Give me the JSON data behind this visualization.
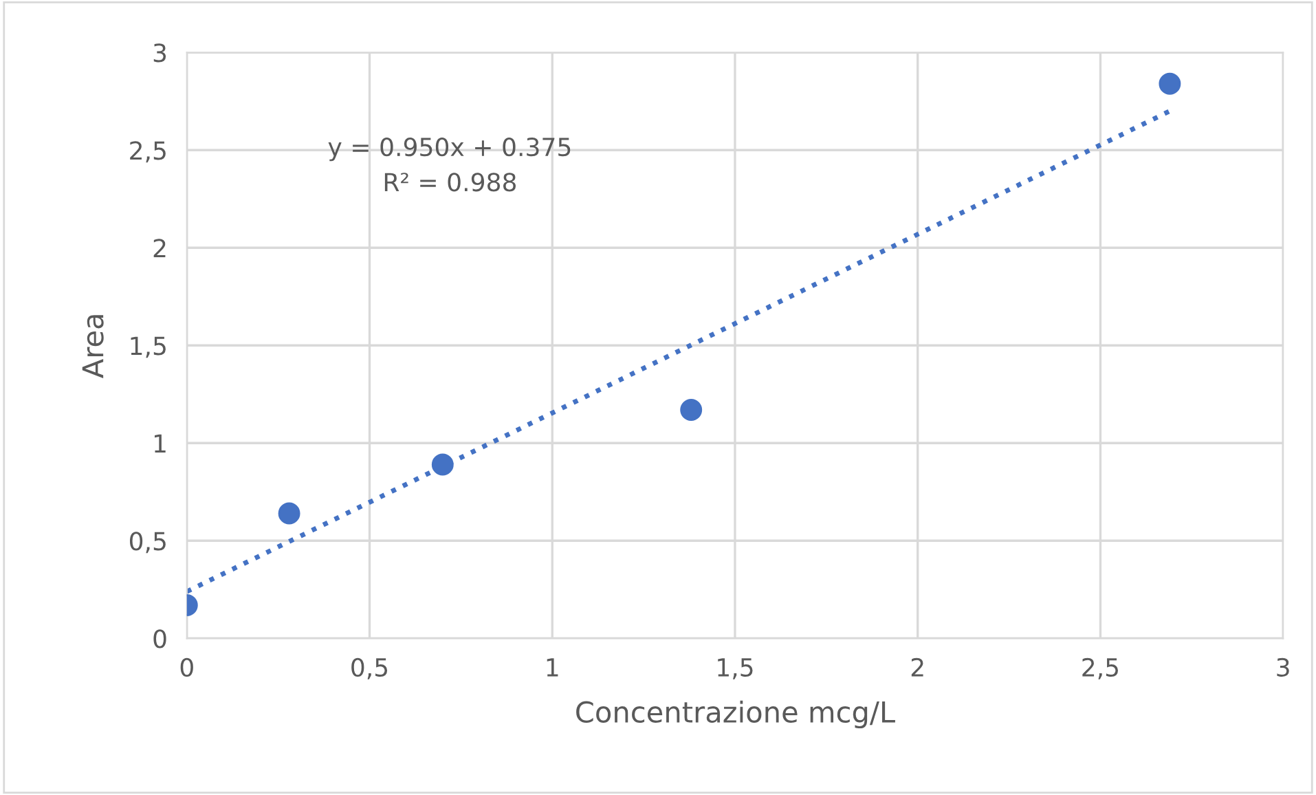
{
  "chart_data": {
    "type": "scatter",
    "xlabel": "Concentrazione mcg/L",
    "ylabel": "Area",
    "series": [
      {
        "color": "#4472c4",
        "x": [
          0,
          0.28,
          0.7,
          1.38,
          2.69
        ],
        "values": [
          0.17,
          0.64,
          0.89,
          1.17,
          2.84
        ],
        "marker": "circle"
      },
      {
        "type": "line",
        "color": "#4472c4",
        "x": [
          0,
          2.69
        ],
        "values": [
          0.24,
          2.7
        ],
        "line_style": "dotted",
        "marker": "none"
      }
    ],
    "xlim": [
      0,
      3
    ],
    "ylim": [
      0,
      3
    ],
    "xticks": [
      0,
      {
        "value": 0.5,
        "label": "0,5"
      },
      1,
      {
        "value": 1.5,
        "label": "1,5"
      },
      2,
      {
        "value": 2.5,
        "label": "2,5"
      },
      3
    ],
    "yticks": [
      0,
      {
        "value": 0.5,
        "label": "0,5"
      },
      1,
      {
        "value": 1.5,
        "label": "1,5"
      },
      2,
      {
        "value": 2.5,
        "label": "2,5"
      },
      3
    ],
    "grid": true,
    "legend": false,
    "annotations": [
      "y = 0.950x + 0.375",
      "R² = 0.988"
    ]
  }
}
